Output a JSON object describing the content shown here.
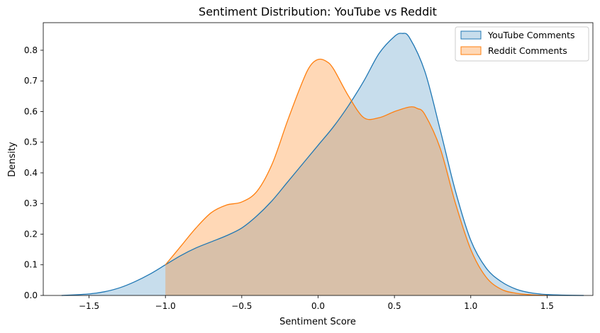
{
  "chart_data": {
    "type": "area",
    "title": "Sentiment Distribution: YouTube vs Reddit",
    "xlabel": "Sentiment Score",
    "ylabel": "Density",
    "xlim": [
      -1.8,
      1.8
    ],
    "ylim": [
      0,
      0.89
    ],
    "xticks": [
      -1.5,
      -1.0,
      -0.5,
      0.0,
      0.5,
      1.0,
      1.5
    ],
    "xtick_labels": [
      "−1.5",
      "−1.0",
      "−0.5",
      "0.0",
      "0.5",
      "1.0",
      "1.5"
    ],
    "yticks": [
      0.0,
      0.1,
      0.2,
      0.3,
      0.4,
      0.5,
      0.6,
      0.7,
      0.8
    ],
    "ytick_labels": [
      "0.0",
      "0.1",
      "0.2",
      "0.3",
      "0.4",
      "0.5",
      "0.6",
      "0.7",
      "0.8"
    ],
    "grid": false,
    "legend_position": "top-right",
    "series": [
      {
        "name": "YouTube Comments",
        "color": "#1f77b4",
        "fill_opacity": 0.25,
        "x": [
          -1.68,
          -1.5,
          -1.4,
          -1.3,
          -1.2,
          -1.1,
          -1.0,
          -0.9,
          -0.8,
          -0.7,
          -0.6,
          -0.5,
          -0.4,
          -0.3,
          -0.2,
          -0.1,
          0.0,
          0.1,
          0.2,
          0.3,
          0.4,
          0.5,
          0.55,
          0.6,
          0.7,
          0.8,
          0.9,
          1.0,
          1.1,
          1.2,
          1.3,
          1.4,
          1.5,
          1.6,
          1.74
        ],
        "y": [
          0.0,
          0.005,
          0.012,
          0.025,
          0.045,
          0.07,
          0.1,
          0.13,
          0.155,
          0.175,
          0.195,
          0.22,
          0.26,
          0.31,
          0.37,
          0.43,
          0.49,
          0.55,
          0.62,
          0.7,
          0.79,
          0.845,
          0.855,
          0.84,
          0.73,
          0.54,
          0.34,
          0.18,
          0.09,
          0.045,
          0.02,
          0.008,
          0.003,
          0.001,
          0.0
        ]
      },
      {
        "name": "Reddit Comments",
        "color": "#ff7f0e",
        "fill_opacity": 0.3,
        "x": [
          -1.0,
          -0.9,
          -0.8,
          -0.7,
          -0.6,
          -0.5,
          -0.4,
          -0.3,
          -0.2,
          -0.1,
          -0.05,
          0.0,
          0.05,
          0.1,
          0.2,
          0.3,
          0.4,
          0.5,
          0.6,
          0.65,
          0.7,
          0.8,
          0.9,
          1.0,
          1.1,
          1.2,
          1.3,
          1.4,
          1.5
        ],
        "y": [
          0.1,
          0.16,
          0.22,
          0.27,
          0.295,
          0.305,
          0.34,
          0.43,
          0.57,
          0.7,
          0.75,
          0.77,
          0.765,
          0.74,
          0.65,
          0.58,
          0.58,
          0.6,
          0.615,
          0.61,
          0.59,
          0.48,
          0.3,
          0.15,
          0.06,
          0.02,
          0.007,
          0.002,
          0.0
        ]
      }
    ]
  }
}
